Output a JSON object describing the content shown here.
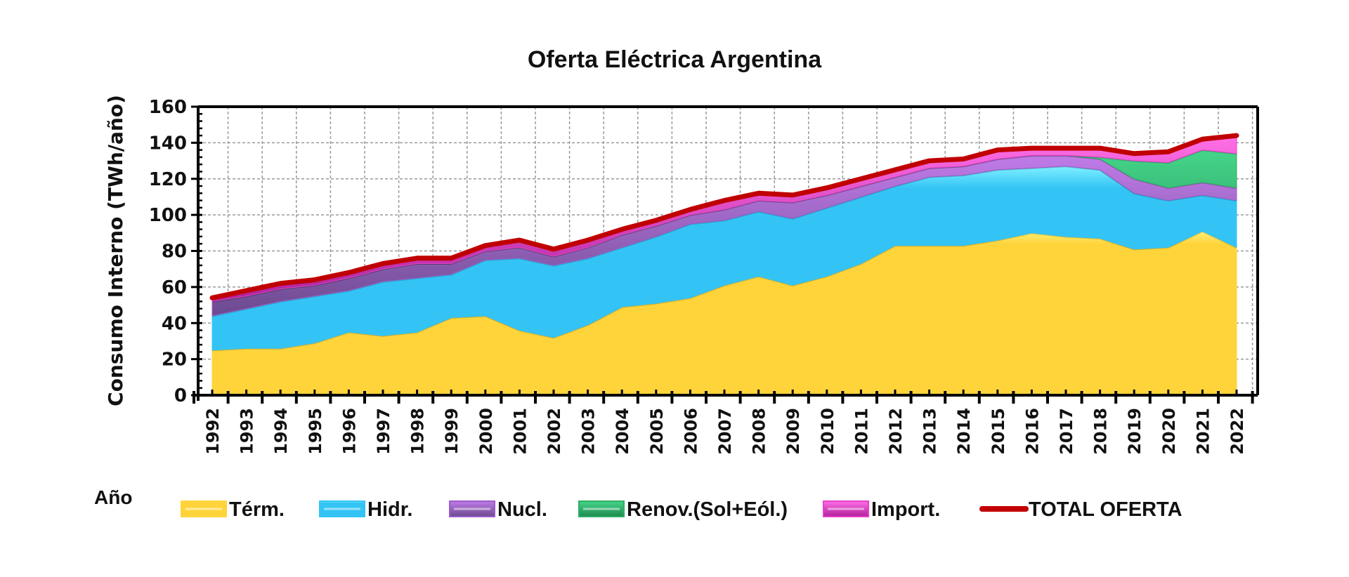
{
  "chart_data": {
    "type": "area",
    "stacked": true,
    "title": "Oferta Eléctrica Argentina",
    "xlabel": "Año",
    "ylabel": "Consumo Interno (TWh/año)",
    "ylim": [
      0,
      160
    ],
    "yticks": [
      "0",
      "20",
      "40",
      "60",
      "80",
      "100",
      "120",
      "140",
      "160"
    ],
    "grid": true,
    "legend_position": "bottom",
    "categories": [
      "1992",
      "1993",
      "1994",
      "1995",
      "1996",
      "1997",
      "1998",
      "1999",
      "2000",
      "2001",
      "2002",
      "2003",
      "2004",
      "2005",
      "2006",
      "2007",
      "2008",
      "2009",
      "2010",
      "2011",
      "2012",
      "2013",
      "2014",
      "2015",
      "2016",
      "2017",
      "2018",
      "2019",
      "2020",
      "2021",
      "2022"
    ],
    "series": [
      {
        "name": "Térm.",
        "color": "#FFD43B",
        "values": [
          25,
          26,
          26,
          29,
          35,
          33,
          35,
          43,
          44,
          36,
          32,
          39,
          49,
          51,
          54,
          61,
          66,
          61,
          66,
          73,
          83,
          83,
          83,
          86,
          90,
          88,
          87,
          81,
          82,
          91,
          82
        ]
      },
      {
        "name": "Hidr.",
        "color": "#33C4F5",
        "values": [
          19,
          22,
          26,
          26,
          23,
          30,
          30,
          24,
          31,
          40,
          40,
          37,
          33,
          37,
          41,
          36,
          36,
          37,
          38,
          37,
          33,
          38,
          39,
          39,
          36,
          39,
          38,
          31,
          26,
          20,
          26
        ]
      },
      {
        "name": "Nucl.",
        "color": "#9B5CC9",
        "values": [
          8,
          7,
          7,
          6,
          7,
          7,
          8,
          6,
          5,
          6,
          5,
          6,
          7,
          6,
          5,
          6,
          6,
          9,
          7,
          6,
          5,
          5,
          5,
          6,
          7,
          6,
          6,
          8,
          7,
          7,
          7
        ]
      },
      {
        "name": "Renov.(Sol+Eól.)",
        "color": "#2EAE66",
        "values": [
          0,
          0,
          0,
          0,
          0,
          0,
          0,
          0,
          0,
          0,
          0,
          0,
          0,
          0,
          0,
          0,
          0,
          0,
          0,
          0,
          0,
          0,
          0,
          0,
          0,
          0,
          1,
          10,
          14,
          18,
          19
        ]
      },
      {
        "name": "Import.",
        "color": "#E83FC8",
        "values": [
          2,
          3,
          3,
          3,
          3,
          3,
          3,
          3,
          3,
          4,
          4,
          4,
          3,
          3,
          3,
          5,
          4,
          4,
          4,
          4,
          4,
          4,
          4,
          5,
          4,
          4,
          5,
          4,
          6,
          6,
          10
        ]
      }
    ],
    "total": {
      "name": "TOTAL OFERTA",
      "color": "#C00000",
      "values": [
        54,
        58,
        62,
        64,
        68,
        73,
        76,
        76,
        83,
        86,
        81,
        86,
        92,
        97,
        103,
        108,
        112,
        111,
        115,
        120,
        125,
        130,
        131,
        136,
        137,
        137,
        137,
        134,
        135,
        142,
        144
      ]
    }
  }
}
